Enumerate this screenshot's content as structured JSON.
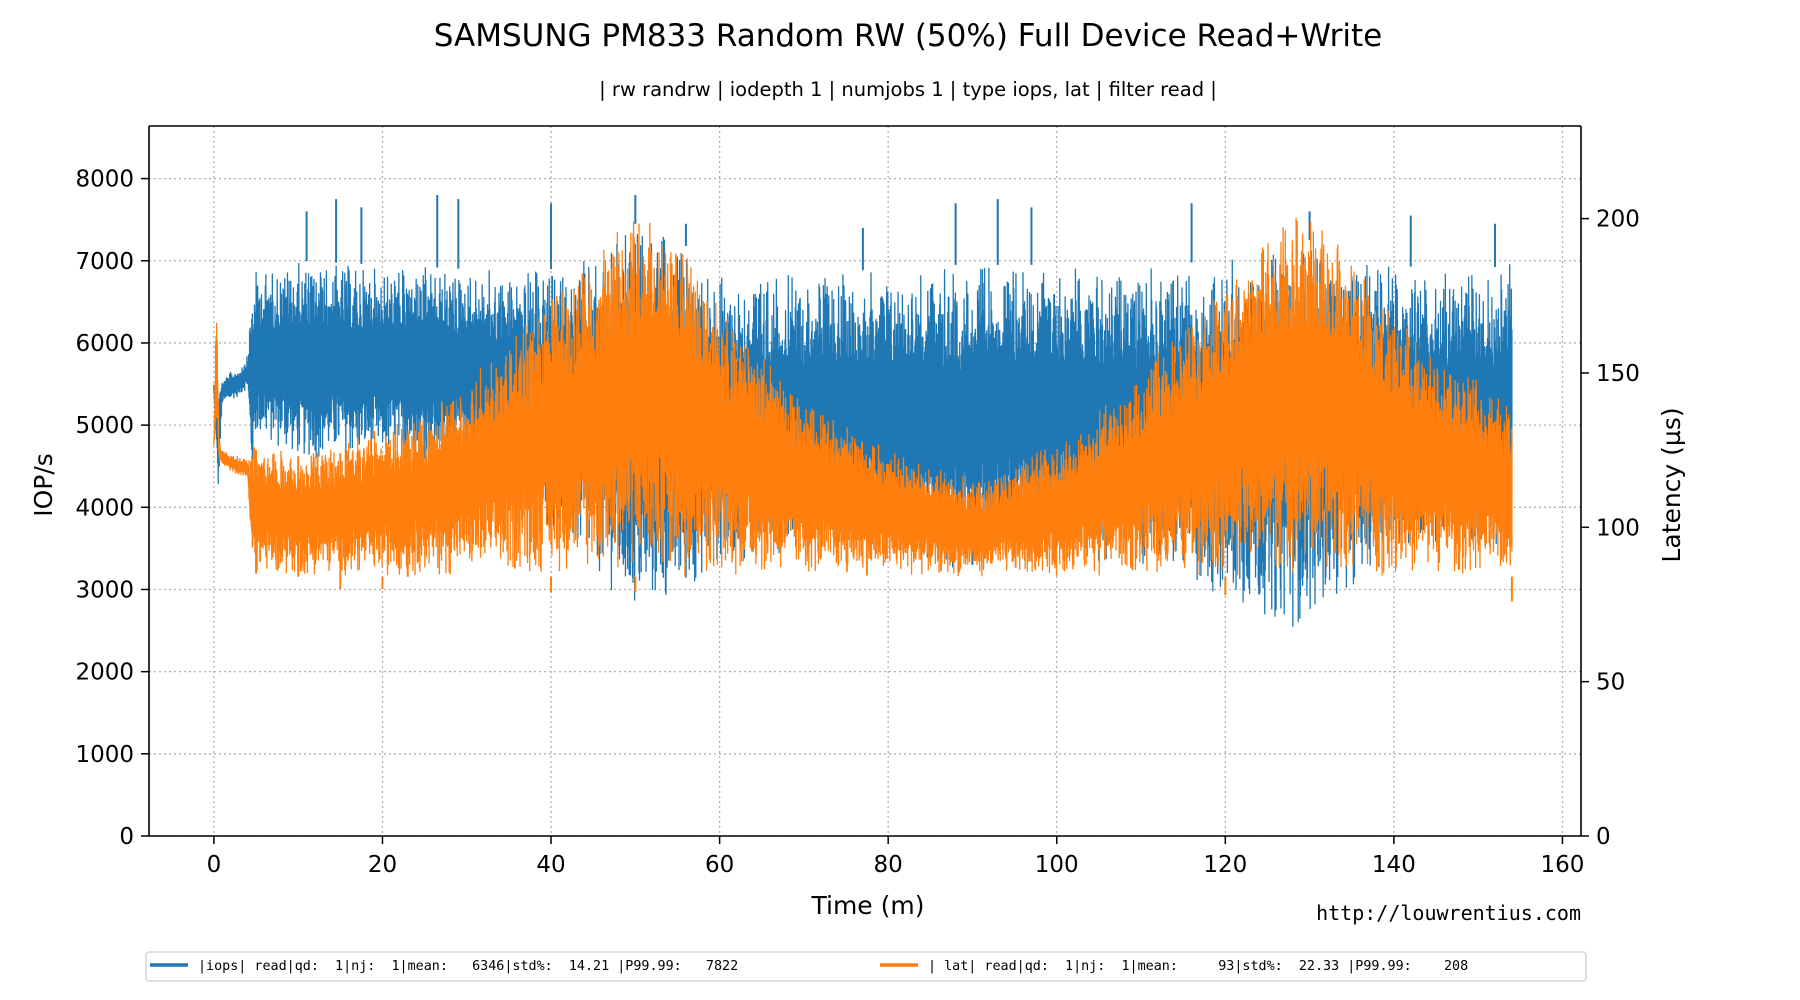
{
  "chart_data": {
    "type": "line",
    "title": "SAMSUNG PM833 Random RW (50%) Full Device Read+Write",
    "subtitle": "| rw randrw | iodepth 1 | numjobs 1 | type iops, lat | filter read |",
    "xlabel": "Time (m)",
    "ylabel_left": "IOP/s",
    "ylabel_right": "Latency (µs)",
    "xlim": [
      -7.7,
      162.2
    ],
    "ylim_left": [
      0,
      8640
    ],
    "ylim_right": [
      0,
      230
    ],
    "x_ticks": [
      0,
      20,
      40,
      60,
      80,
      100,
      120,
      140,
      160
    ],
    "y_ticks_left": [
      0,
      1000,
      2000,
      3000,
      4000,
      5000,
      6000,
      7000,
      8000
    ],
    "y_ticks_right": [
      0,
      50,
      100,
      150,
      200
    ],
    "grid": true,
    "legend_position": "bottom-center",
    "watermark": "http://louwrentius.com",
    "series": [
      {
        "name": "|iops| read|qd:  1|nj:  1|mean:   6346|std%:  14.21 |P99.99:   7822",
        "axis": "left",
        "color": "#1f77b4",
        "x": [
          0,
          0.5,
          1,
          2,
          3,
          4,
          4.5,
          5,
          10,
          20,
          30,
          40,
          45,
          50,
          55,
          60,
          70,
          80,
          88,
          90,
          95,
          100,
          110,
          120,
          125,
          128,
          130,
          135,
          140,
          150,
          154
        ],
        "y_low": [
          5400,
          4050,
          5250,
          5300,
          5350,
          5450,
          4200,
          4800,
          4550,
          4550,
          4500,
          3600,
          3200,
          2600,
          2800,
          3300,
          3500,
          3400,
          3200,
          3300,
          3450,
          3400,
          3300,
          2800,
          2600,
          2500,
          2600,
          3000,
          3400,
          3500,
          3500
        ],
        "y_high": [
          5500,
          5600,
          5550,
          5650,
          5700,
          5850,
          6800,
          6900,
          7000,
          6950,
          6900,
          6900,
          7050,
          7450,
          7250,
          6900,
          6850,
          6900,
          6950,
          6950,
          6950,
          6950,
          6950,
          7000,
          7200,
          7400,
          7250,
          7050,
          6950,
          6850,
          7000
        ],
        "spikes": [
          [
            11,
            7600
          ],
          [
            14.5,
            7750
          ],
          [
            17.5,
            7650
          ],
          [
            26.5,
            7800
          ],
          [
            29,
            7750
          ],
          [
            40,
            7700
          ],
          [
            50,
            7800
          ],
          [
            56,
            7450
          ],
          [
            77,
            7400
          ],
          [
            88,
            7700
          ],
          [
            93,
            7750
          ],
          [
            97,
            7650
          ],
          [
            116,
            7700
          ],
          [
            130,
            7600
          ],
          [
            142,
            7550
          ],
          [
            152,
            7450
          ],
          [
            90,
            4450
          ],
          [
            105,
            4650
          ]
        ]
      },
      {
        "name": "| lat| read|qd:  1|nj:  1|mean:     93|std%:  22.33 |P99.99:    208",
        "axis": "right",
        "color": "#ff7f0e",
        "x": [
          0,
          0.3,
          0.6,
          1,
          2,
          3,
          4,
          4.5,
          5,
          10,
          20,
          25,
          30,
          40,
          45,
          50,
          51,
          55,
          60,
          70,
          80,
          88,
          92,
          100,
          110,
          120,
          125,
          128,
          130,
          135,
          140,
          150,
          154
        ],
        "y_low": [
          125,
          130,
          122,
          120,
          118,
          117,
          116,
          86,
          85,
          84,
          84,
          84,
          84,
          84,
          84,
          84,
          84,
          84,
          84,
          84,
          84,
          84,
          84,
          84,
          84,
          84,
          84,
          84,
          84,
          84,
          84,
          84,
          84
        ],
        "y_high": [
          130,
          178,
          128,
          125,
          124,
          123,
          122,
          125,
          127,
          124,
          132,
          138,
          148,
          175,
          190,
          203,
          210,
          196,
          172,
          142,
          126,
          118,
          116,
          128,
          150,
          180,
          195,
          205,
          203,
          190,
          168,
          148,
          140
        ],
        "spikes": [
          [
            5,
            125
          ],
          [
            10,
            123
          ],
          [
            15,
            80
          ],
          [
            20,
            80
          ],
          [
            40,
            79
          ],
          [
            50,
            79
          ],
          [
            120,
            78
          ],
          [
            154,
            76
          ],
          [
            15,
            124
          ],
          [
            23,
            130
          ]
        ]
      }
    ]
  }
}
